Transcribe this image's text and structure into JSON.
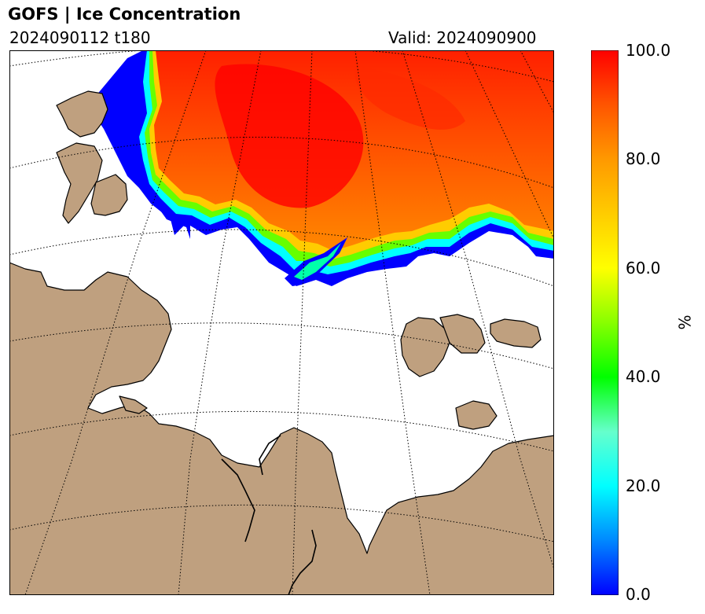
{
  "header": {
    "title": "GOFS  |  Ice Concentration",
    "run": "2024090112 t180",
    "valid": "Valid: 2024090900"
  },
  "colorbar": {
    "label": "%",
    "ticks": [
      "100.0",
      "80.0",
      "60.0",
      "40.0",
      "20.0",
      "0.0"
    ],
    "range": [
      0,
      100
    ]
  },
  "colors": {
    "land": "#bfa07f",
    "ocean": "#ffffff",
    "ice_high": "#ff0000",
    "ice_mid": "#ffff00",
    "ice_low": "#0000ff"
  }
}
